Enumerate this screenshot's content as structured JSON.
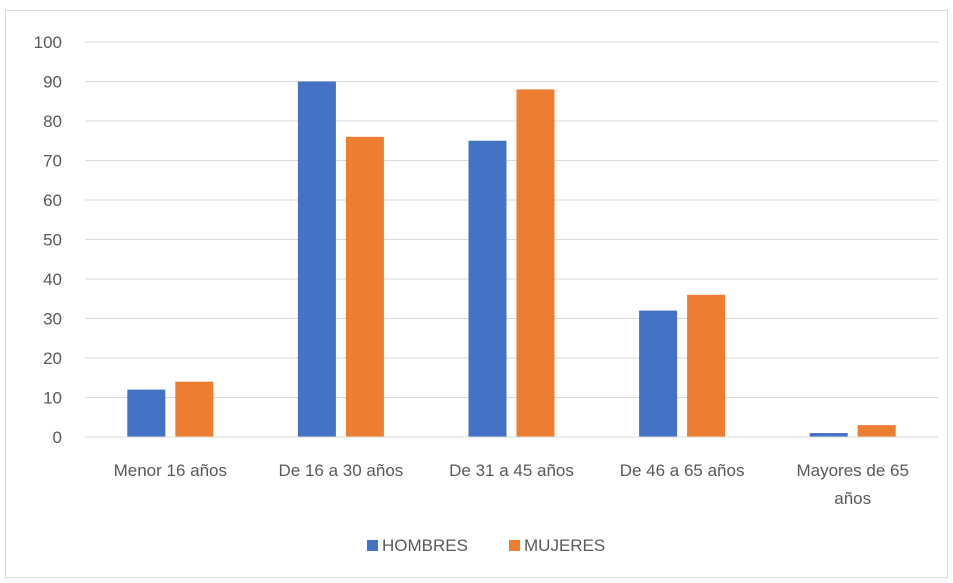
{
  "chart_data": {
    "type": "bar",
    "title": "",
    "xlabel": "",
    "ylabel": "",
    "categories": [
      [
        "Menor 16 años"
      ],
      [
        "De 16 a 30 años"
      ],
      [
        "De 31 a 45 años"
      ],
      [
        "De 46 a 65 años"
      ],
      [
        "Mayores de 65",
        "años"
      ]
    ],
    "series": [
      {
        "name": "HOMBRES",
        "color": "#4472c4",
        "values": [
          12,
          90,
          75,
          32,
          1
        ]
      },
      {
        "name": "MUJERES",
        "color": "#ed7d31",
        "values": [
          14,
          76,
          88,
          36,
          3
        ]
      }
    ],
    "ylim": [
      0,
      100
    ],
    "yticks": [
      0,
      10,
      20,
      30,
      40,
      50,
      60,
      70,
      80,
      90,
      100
    ],
    "grid": true,
    "gridline_color": "#d9d9d9",
    "legend_position": "bottom"
  }
}
